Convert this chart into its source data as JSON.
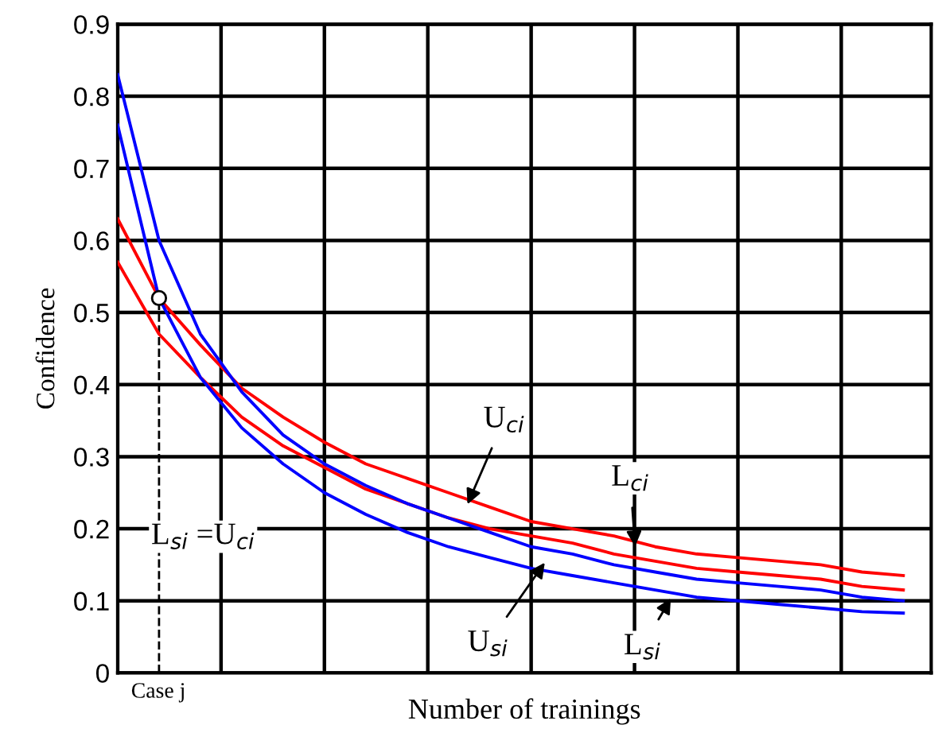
{
  "chart_data": {
    "type": "line",
    "xlabel": "Number of trainings",
    "ylabel": "Confidence",
    "categories": [
      null,
      null,
      null,
      null,
      null,
      null,
      null,
      null,
      null,
      null,
      null,
      null,
      null,
      null,
      null,
      null,
      null,
      null,
      null,
      null
    ],
    "ylim": [
      0,
      0.9
    ],
    "yticks": [
      0,
      0.1,
      0.2,
      0.3,
      0.4,
      0.5,
      0.6,
      0.7,
      0.8,
      0.9
    ],
    "grid": true,
    "legend": false,
    "marker": "none",
    "line_style": "solid",
    "series": [
      {
        "color": "#ff0000",
        "values": [
          0.63,
          0.52,
          0.455,
          0.395,
          0.355,
          0.32,
          0.29,
          0.27,
          0.25,
          0.23,
          0.21,
          0.2,
          0.19,
          0.175,
          0.165,
          0.16,
          0.155,
          0.15,
          0.14,
          0.135
        ]
      },
      {
        "color": "#ff0000",
        "values": [
          0.57,
          0.47,
          0.41,
          0.355,
          0.315,
          0.285,
          0.255,
          0.235,
          0.215,
          0.2,
          0.19,
          0.18,
          0.165,
          0.155,
          0.145,
          0.14,
          0.135,
          0.13,
          0.12,
          0.115
        ]
      },
      {
        "color": "#0000ff",
        "values": [
          0.83,
          0.6,
          0.47,
          0.39,
          0.33,
          0.29,
          0.26,
          0.235,
          0.215,
          0.195,
          0.175,
          0.165,
          0.15,
          0.14,
          0.13,
          0.125,
          0.12,
          0.115,
          0.105,
          0.1
        ]
      },
      {
        "color": "#0000ff",
        "values": [
          0.76,
          0.52,
          0.41,
          0.34,
          0.29,
          0.25,
          0.22,
          0.195,
          0.175,
          0.16,
          0.145,
          0.135,
          0.125,
          0.115,
          0.105,
          0.1,
          0.095,
          0.09,
          0.085,
          0.083
        ]
      },
      {
        "type": "scatter",
        "marker": "circle",
        "color": "#000000",
        "values": [
          null,
          0.52,
          null,
          null,
          null,
          null,
          null,
          null,
          null,
          null,
          null,
          null,
          null,
          null,
          null,
          null,
          null,
          null,
          null,
          null
        ]
      }
    ],
    "annotations": [
      "U$_{ci}$",
      "L$_{ci}$",
      "U$_{si}$",
      "L$_{si}$",
      "L$_{si}$ =U$_{ci}$",
      "Case j"
    ]
  }
}
